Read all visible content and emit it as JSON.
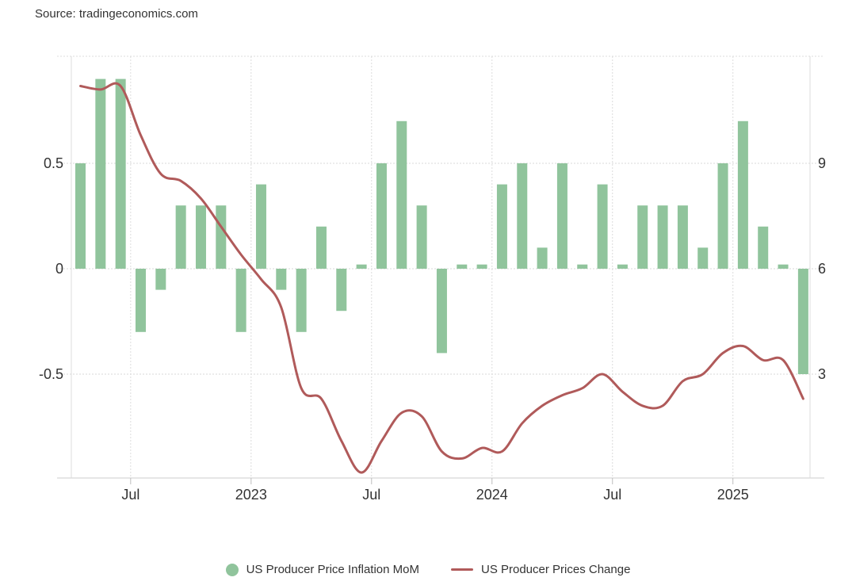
{
  "source": "Source: tradingeconomics.com",
  "chart_data": {
    "type": "bar+line",
    "title": "",
    "xlabel": "",
    "left_axis": {
      "ticks": [
        0.5,
        0,
        -0.5
      ],
      "tick_labels": [
        "0.5",
        "0",
        "-0.5"
      ],
      "ylim": [
        -1.0,
        1.0
      ]
    },
    "right_axis": {
      "ticks": [
        9,
        6,
        3
      ],
      "tick_labels": [
        "9",
        "6",
        "3"
      ],
      "ylim": [
        0,
        12
      ]
    },
    "x_tick_labels": [
      "Jul",
      "2023",
      "Jul",
      "2024",
      "Jul",
      "2025"
    ],
    "x_tick_months": [
      "2022-07",
      "2023-01",
      "2023-07",
      "2024-01",
      "2024-07",
      "2025-01"
    ],
    "months": [
      "2022-04",
      "2022-05",
      "2022-06",
      "2022-07",
      "2022-08",
      "2022-09",
      "2022-10",
      "2022-11",
      "2022-12",
      "2023-01",
      "2023-02",
      "2023-03",
      "2023-04",
      "2023-05",
      "2023-06",
      "2023-07",
      "2023-08",
      "2023-09",
      "2023-10",
      "2023-11",
      "2023-12",
      "2024-01",
      "2024-02",
      "2024-03",
      "2024-04",
      "2024-05",
      "2024-06",
      "2024-07",
      "2024-08",
      "2024-09",
      "2024-10",
      "2024-11",
      "2024-12",
      "2025-01",
      "2025-02",
      "2025-03",
      "2025-04"
    ],
    "series": [
      {
        "name": "US Producer Price Inflation MoM",
        "type": "bar",
        "axis": "left",
        "color": "#90c49c",
        "values": [
          0.5,
          0.9,
          0.9,
          -0.3,
          -0.1,
          0.3,
          0.3,
          0.3,
          -0.3,
          0.4,
          -0.1,
          -0.3,
          0.2,
          -0.2,
          0.02,
          0.5,
          0.7,
          0.3,
          -0.4,
          0.02,
          0.02,
          0.4,
          0.5,
          0.1,
          0.5,
          0.02,
          0.4,
          0.02,
          0.3,
          0.3,
          0.3,
          0.1,
          0.5,
          0.7,
          0.2,
          0.02,
          -0.5
        ]
      },
      {
        "name": "US Producer Prices Change",
        "type": "line",
        "axis": "right",
        "color": "#b05a5a",
        "values": [
          11.2,
          11.1,
          11.2,
          9.8,
          8.7,
          8.5,
          8.0,
          7.2,
          6.4,
          5.7,
          4.9,
          2.6,
          2.3,
          1.1,
          0.2,
          1.1,
          1.9,
          1.8,
          0.8,
          0.6,
          0.9,
          0.8,
          1.6,
          2.1,
          2.4,
          2.6,
          3.0,
          2.5,
          2.1,
          2.1,
          2.8,
          3.0,
          3.6,
          3.8,
          3.4,
          3.4,
          2.3
        ]
      }
    ],
    "legend_position": "bottom",
    "grid": true
  }
}
